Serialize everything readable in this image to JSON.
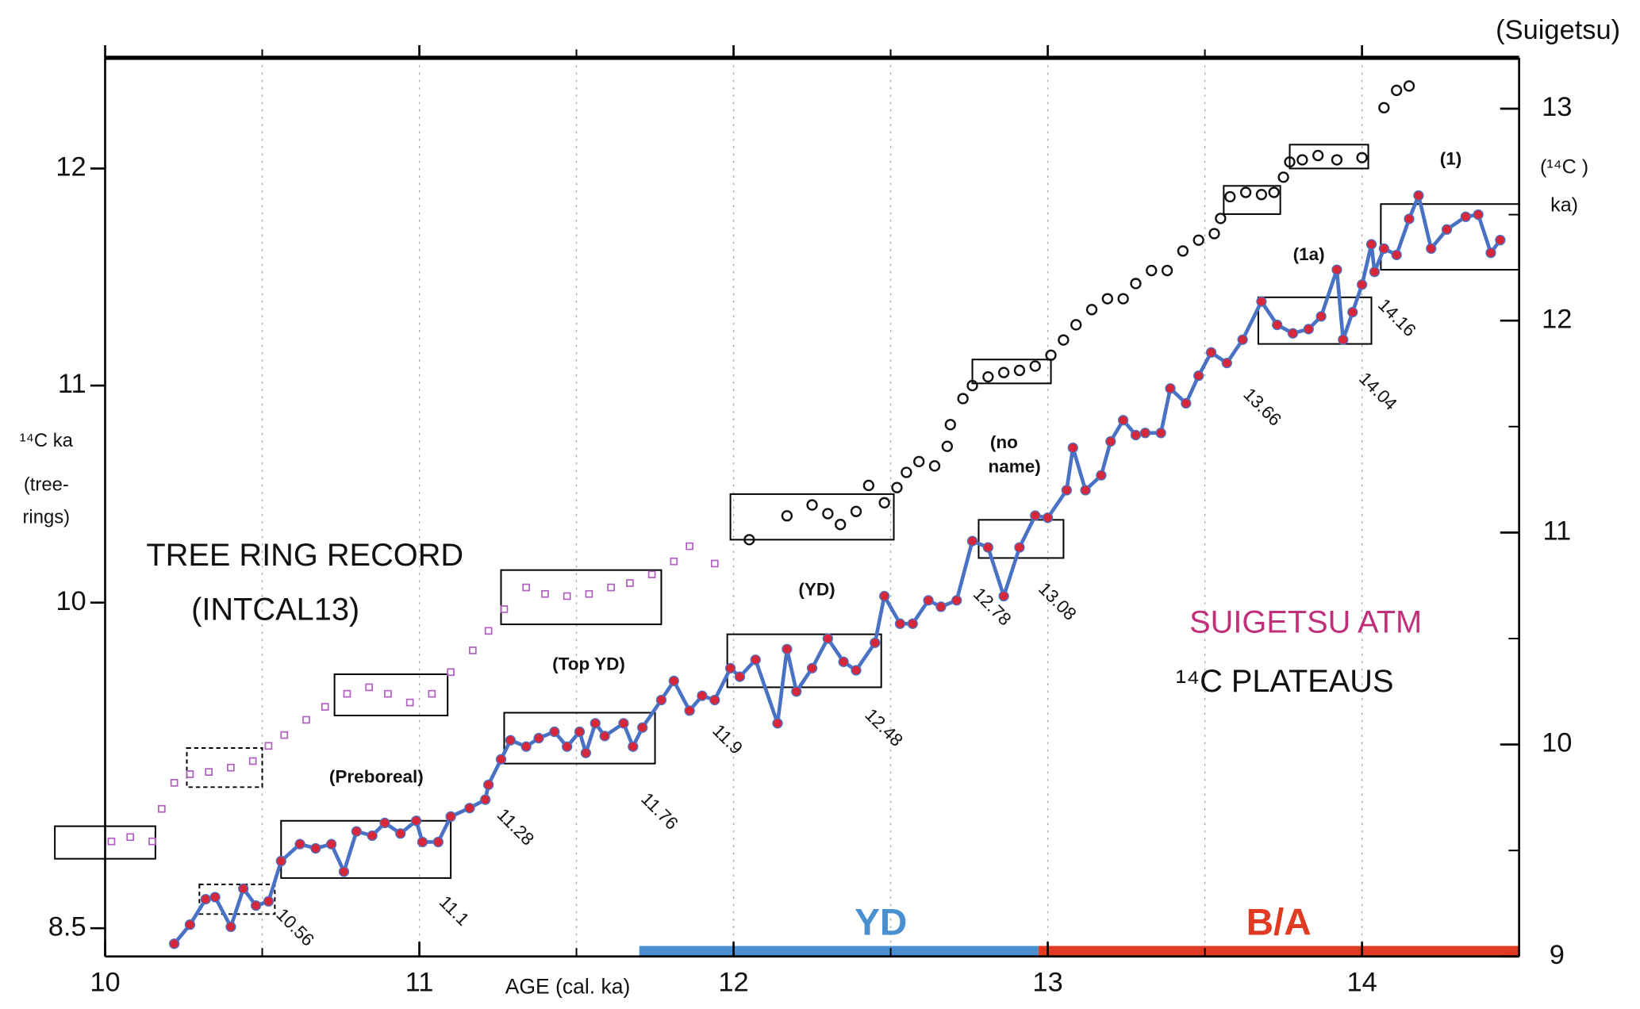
{
  "chart_data": {
    "type": "line",
    "x_label": "AGE (cal. ka)",
    "y_label": [
      "¹⁴C ka",
      "(tree-",
      "rings)"
    ],
    "y2_title": "(Suigetsu)",
    "y2_label": [
      "(¹⁴C )",
      "ka)"
    ],
    "texts": [
      "TREE RING RECORD",
      "(INTCAL13)",
      "SUIGETSU ATM",
      "¹⁴C PLATEAUS"
    ],
    "plateau_names": [
      "(Preboreal)",
      "(Top YD)",
      "(YD)",
      [
        "(no",
        "name)"
      ],
      "(1a)",
      "(1)"
    ],
    "boundary_labels": [
      "10.56",
      "11.1",
      "11.28",
      "11.76",
      "11.9",
      "12.48",
      "12.78",
      "13.08",
      "13.66",
      "14.04",
      "14.16"
    ],
    "xlim": [
      10,
      14.5
    ],
    "ylim": [
      8.37,
      12.51
    ],
    "y2lim": [
      9,
      13.24
    ],
    "xticks": [
      10,
      11,
      12,
      13,
      14
    ],
    "xminorticks": [
      10.5,
      11.5,
      12.5,
      13.5
    ],
    "yticks": [
      8.5,
      10,
      11,
      12
    ],
    "y2ticks": [
      9,
      10,
      11,
      12,
      13
    ],
    "y2minorticks": [
      9.5,
      10.5,
      11.5,
      12.5
    ],
    "grid": true,
    "series": [
      {
        "type": "line",
        "axis": "y2",
        "color": "#4a72c4",
        "marker_color": "#d6283a",
        "x": [
          10.22,
          10.27,
          10.32,
          10.35,
          10.4,
          10.44,
          10.48,
          10.52,
          10.56,
          10.62,
          10.67,
          10.72,
          10.76,
          10.8,
          10.85,
          10.89,
          10.94,
          10.99,
          11.01,
          11.06,
          11.1,
          11.16,
          11.21,
          11.22,
          11.26,
          11.29,
          11.34,
          11.38,
          11.43,
          11.47,
          11.51,
          11.53,
          11.56,
          11.59,
          11.65,
          11.68,
          11.71,
          11.77,
          11.81,
          11.86,
          11.9,
          11.94,
          11.99,
          12.02,
          12.07,
          12.14,
          12.17,
          12.2,
          12.25,
          12.3,
          12.35,
          12.39,
          12.45,
          12.48,
          12.53,
          12.57,
          12.62,
          12.66,
          12.71,
          12.76,
          12.81,
          12.86,
          12.91,
          12.96,
          13.0,
          13.06,
          13.08,
          13.12,
          13.17,
          13.2,
          13.24,
          13.28,
          13.31,
          13.36,
          13.39,
          13.44,
          13.48,
          13.52,
          13.57,
          13.62,
          13.68,
          13.73,
          13.78,
          13.83,
          13.87,
          13.92,
          13.94,
          13.97,
          14.0,
          14.03,
          14.04,
          14.07,
          14.11,
          14.15,
          14.18,
          14.22,
          14.27,
          14.33,
          14.37,
          14.41,
          14.44
        ],
        "values": [
          9.06,
          9.15,
          9.27,
          9.28,
          9.14,
          9.32,
          9.24,
          9.26,
          9.45,
          9.53,
          9.51,
          9.53,
          9.4,
          9.59,
          9.57,
          9.63,
          9.58,
          9.64,
          9.54,
          9.54,
          9.66,
          9.7,
          9.74,
          9.81,
          9.93,
          10.02,
          9.99,
          10.03,
          10.06,
          9.99,
          10.06,
          9.96,
          10.1,
          10.04,
          10.1,
          9.99,
          10.08,
          10.21,
          10.3,
          10.16,
          10.23,
          10.21,
          10.36,
          10.32,
          10.4,
          10.1,
          10.45,
          10.25,
          10.36,
          10.5,
          10.39,
          10.35,
          10.48,
          10.7,
          10.57,
          10.57,
          10.68,
          10.65,
          10.68,
          10.96,
          10.93,
          10.7,
          10.93,
          11.08,
          11.07,
          11.2,
          11.4,
          11.2,
          11.27,
          11.43,
          11.53,
          11.46,
          11.47,
          11.47,
          11.68,
          11.61,
          11.74,
          11.85,
          11.8,
          11.91,
          12.09,
          11.98,
          11.94,
          11.96,
          12.02,
          12.24,
          11.91,
          12.04,
          12.17,
          12.36,
          12.23,
          12.34,
          12.31,
          12.48,
          12.59,
          12.34,
          12.43,
          12.49,
          12.5,
          12.32,
          12.38
        ]
      },
      {
        "type": "scatter",
        "axis": "y",
        "color": "#111111",
        "marker": "circle",
        "x": [
          12.05,
          12.17,
          12.25,
          12.3,
          12.34,
          12.39,
          12.43,
          12.48,
          12.52,
          12.55,
          12.59,
          12.64,
          12.68,
          12.69,
          12.73,
          12.76,
          12.81,
          12.86,
          12.91,
          12.96,
          13.01,
          13.05,
          13.09,
          13.14,
          13.19,
          13.24,
          13.28,
          13.33,
          13.38,
          13.43,
          13.48,
          13.53,
          13.55,
          13.58,
          13.63,
          13.68,
          13.72,
          13.75,
          13.77,
          13.81,
          13.86,
          13.92,
          14.0,
          14.07,
          14.11,
          14.15
        ],
        "values": [
          10.29,
          10.4,
          10.45,
          10.41,
          10.36,
          10.42,
          10.54,
          10.46,
          10.53,
          10.6,
          10.65,
          10.63,
          10.72,
          10.82,
          10.94,
          11.0,
          11.04,
          11.06,
          11.07,
          11.09,
          11.14,
          11.21,
          11.28,
          11.35,
          11.4,
          11.4,
          11.47,
          11.53,
          11.53,
          11.62,
          11.67,
          11.7,
          11.77,
          11.87,
          11.89,
          11.88,
          11.89,
          11.96,
          12.03,
          12.04,
          12.06,
          12.04,
          12.05,
          12.28,
          12.36,
          12.38
        ]
      },
      {
        "type": "scatter",
        "axis": "y",
        "color": "#b060c0",
        "marker": "square",
        "x": [
          10.02,
          10.08,
          10.15,
          10.18,
          10.22,
          10.27,
          10.33,
          10.4,
          10.47,
          10.52,
          10.57,
          10.64,
          10.7,
          10.77,
          10.84,
          10.9,
          10.97,
          11.04,
          11.1,
          11.17,
          11.22,
          11.27,
          11.34,
          11.4,
          11.47,
          11.54,
          11.61,
          11.67,
          11.74,
          11.81,
          11.86,
          11.94
        ],
        "values": [
          8.9,
          8.92,
          8.9,
          9.05,
          9.17,
          9.21,
          9.22,
          9.24,
          9.27,
          9.34,
          9.39,
          9.46,
          9.52,
          9.58,
          9.61,
          9.58,
          9.54,
          9.58,
          9.68,
          9.78,
          9.87,
          9.97,
          10.07,
          10.04,
          10.03,
          10.04,
          10.07,
          10.09,
          10.13,
          10.19,
          10.26,
          10.18
        ]
      }
    ],
    "plateaus": [
      {
        "axis": "y2",
        "x": [
          10.3,
          10.54
        ],
        "y": [
          9.2,
          9.34
        ],
        "dashed": true
      },
      {
        "axis": "y2",
        "x": [
          10.56,
          11.1
        ],
        "y": [
          9.37,
          9.64
        ],
        "dashed": false
      },
      {
        "axis": "y2",
        "x": [
          11.27,
          11.75
        ],
        "y": [
          9.91,
          10.15
        ],
        "dashed": false
      },
      {
        "axis": "y2",
        "x": [
          11.98,
          12.47
        ],
        "y": [
          10.27,
          10.52
        ],
        "dashed": false
      },
      {
        "axis": "y2",
        "x": [
          12.78,
          13.05
        ],
        "y": [
          10.88,
          11.06
        ],
        "dashed": false
      },
      {
        "axis": "y2",
        "x": [
          13.67,
          14.03
        ],
        "y": [
          11.89,
          12.11
        ],
        "dashed": false
      },
      {
        "axis": "y2",
        "x": [
          14.06,
          14.5
        ],
        "y": [
          12.24,
          12.55
        ],
        "dashed": false
      },
      {
        "axis": "y",
        "x": [
          9.84,
          10.16
        ],
        "y": [
          8.82,
          8.97
        ],
        "dashed": false
      },
      {
        "axis": "y",
        "x": [
          10.26,
          10.5
        ],
        "y": [
          9.15,
          9.33
        ],
        "dashed": true
      },
      {
        "axis": "y",
        "x": [
          10.73,
          11.09
        ],
        "y": [
          9.48,
          9.67
        ],
        "dashed": false
      },
      {
        "axis": "y",
        "x": [
          11.26,
          11.77
        ],
        "y": [
          9.9,
          10.15
        ],
        "dashed": false
      },
      {
        "axis": "y",
        "x": [
          11.99,
          12.51
        ],
        "y": [
          10.29,
          10.5
        ],
        "dashed": false
      },
      {
        "axis": "y",
        "x": [
          12.76,
          13.01
        ],
        "y": [
          11.01,
          11.12
        ],
        "dashed": false
      },
      {
        "axis": "y",
        "x": [
          13.56,
          13.74
        ],
        "y": [
          11.79,
          11.92
        ],
        "dashed": false
      },
      {
        "axis": "y",
        "x": [
          13.77,
          14.02
        ],
        "y": [
          12.0,
          12.11
        ],
        "dashed": false
      }
    ],
    "periods": [
      {
        "name": "YD",
        "start": 11.7,
        "end": 12.97,
        "color": "#4a90d0"
      },
      {
        "name": "B/A",
        "start": 12.97,
        "end": 14.5,
        "color": "#e03a22"
      }
    ]
  }
}
